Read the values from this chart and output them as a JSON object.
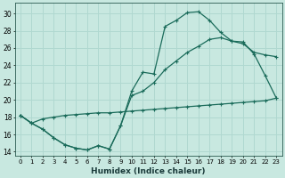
{
  "xlabel": "Humidex (Indice chaleur)",
  "bg_color": "#c8e8e0",
  "grid_color": "#b0d8d0",
  "line_color": "#1a6b5a",
  "xlim": [
    -0.5,
    23.5
  ],
  "ylim": [
    13.5,
    31.2
  ],
  "xticks": [
    0,
    1,
    2,
    3,
    4,
    5,
    6,
    7,
    8,
    9,
    10,
    11,
    12,
    13,
    14,
    15,
    16,
    17,
    18,
    19,
    20,
    21,
    22,
    23
  ],
  "yticks": [
    14,
    16,
    18,
    20,
    22,
    24,
    26,
    28,
    30
  ],
  "line1_x": [
    0,
    1,
    2,
    3,
    4,
    5,
    6,
    7,
    8,
    9,
    10,
    11,
    12,
    13,
    14,
    15,
    16,
    17,
    18,
    19,
    20,
    21,
    22,
    23
  ],
  "line1_y": [
    18.2,
    17.3,
    16.6,
    15.6,
    14.8,
    14.4,
    14.2,
    14.7,
    14.3,
    17.0,
    21.0,
    23.2,
    23.0,
    28.5,
    29.2,
    30.1,
    30.2,
    29.2,
    27.8,
    26.8,
    26.7,
    25.3,
    22.8,
    20.2
  ],
  "line2_x": [
    0,
    1,
    2,
    3,
    4,
    5,
    6,
    7,
    8,
    9,
    10,
    11,
    12,
    13,
    14,
    15,
    16,
    17,
    18,
    19,
    20,
    21,
    22,
    23
  ],
  "line2_y": [
    18.2,
    17.3,
    16.6,
    15.6,
    14.8,
    14.4,
    14.2,
    14.7,
    14.3,
    17.0,
    20.5,
    21.0,
    22.0,
    23.5,
    24.5,
    25.5,
    26.2,
    27.0,
    27.2,
    26.8,
    26.5,
    25.5,
    25.2,
    25.0
  ],
  "line3_x": [
    0,
    1,
    2,
    3,
    4,
    5,
    6,
    7,
    8,
    9,
    10,
    11,
    12,
    13,
    14,
    15,
    16,
    17,
    18,
    19,
    20,
    21,
    22,
    23
  ],
  "line3_y": [
    18.2,
    17.3,
    17.8,
    18.0,
    18.2,
    18.3,
    18.4,
    18.5,
    18.5,
    18.6,
    18.7,
    18.8,
    18.9,
    19.0,
    19.1,
    19.2,
    19.3,
    19.4,
    19.5,
    19.6,
    19.7,
    19.8,
    19.9,
    20.2
  ]
}
